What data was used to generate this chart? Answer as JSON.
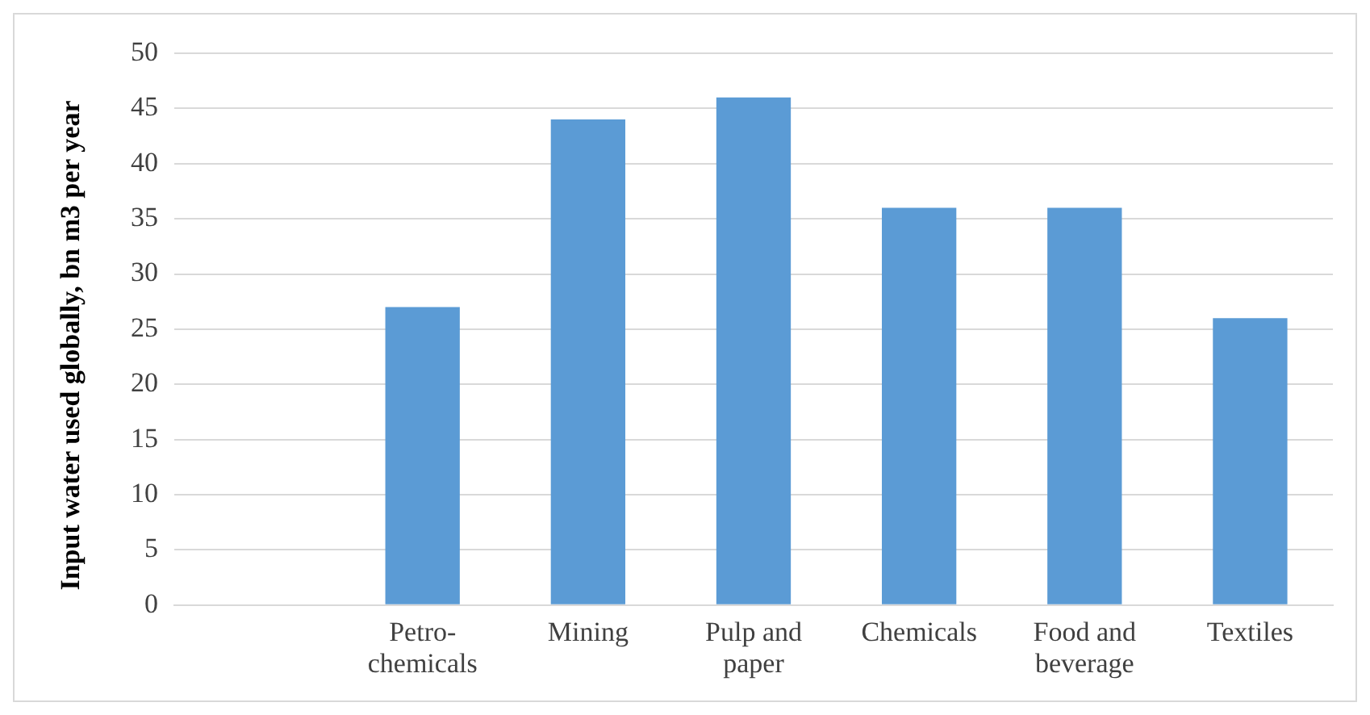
{
  "chart_data": {
    "type": "bar",
    "ylabel": "Input water used globally, bn m3 per year",
    "categories": [
      null,
      "Petro-chemicals",
      "Mining",
      "Pulp and paper",
      "Chemicals",
      "Food and beverage",
      "Textiles"
    ],
    "values": [
      null,
      27,
      44,
      46,
      36,
      36,
      26
    ],
    "color": "#5b9bd5",
    "ylim": [
      0,
      50
    ],
    "yticks": [
      0,
      5,
      10,
      15,
      20,
      25,
      30,
      35,
      40,
      45,
      50
    ],
    "grid": "y",
    "legend": false
  }
}
